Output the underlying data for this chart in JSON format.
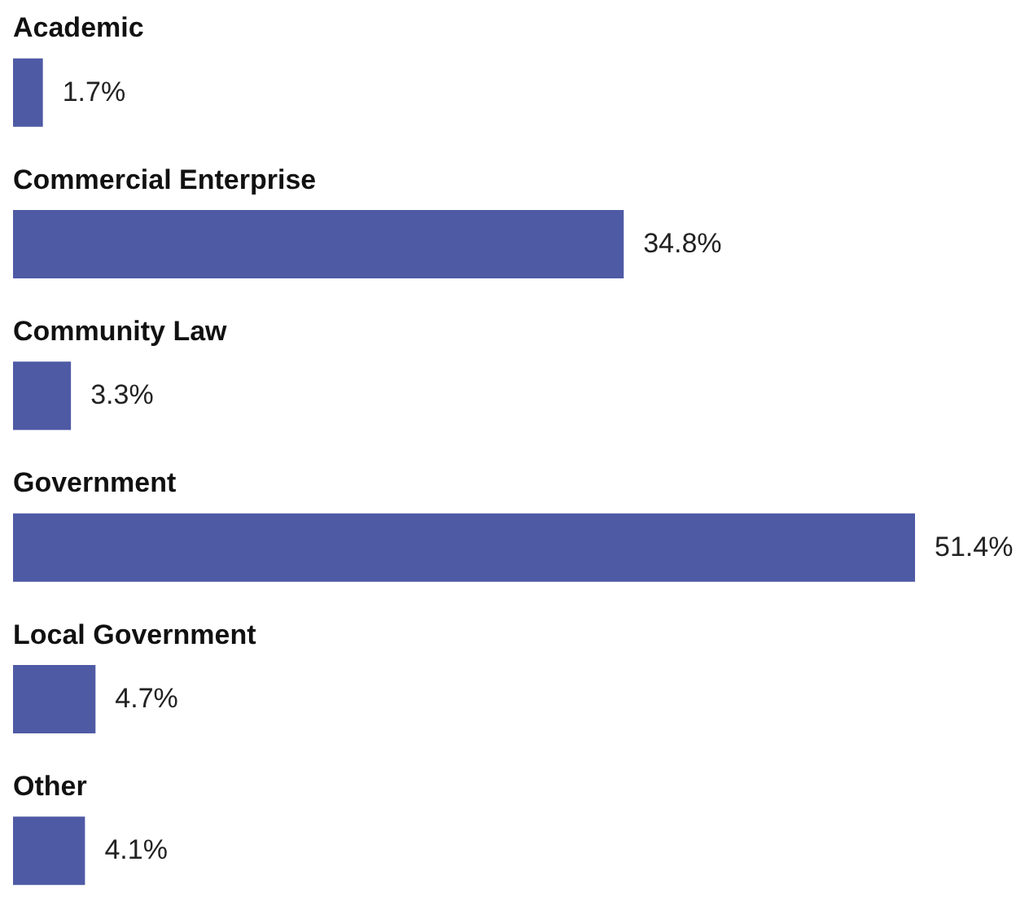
{
  "chart_data": {
    "type": "bar",
    "orientation": "horizontal",
    "categories": [
      "Academic",
      "Commercial Enterprise",
      "Community Law",
      "Government",
      "Local Government",
      "Other"
    ],
    "values": [
      1.7,
      34.8,
      3.3,
      51.4,
      4.7,
      4.1
    ],
    "value_labels": [
      "1.7%",
      "34.8%",
      "3.3%",
      "51.4%",
      "4.7%",
      "4.1%"
    ],
    "color": "#4f5aa5"
  }
}
